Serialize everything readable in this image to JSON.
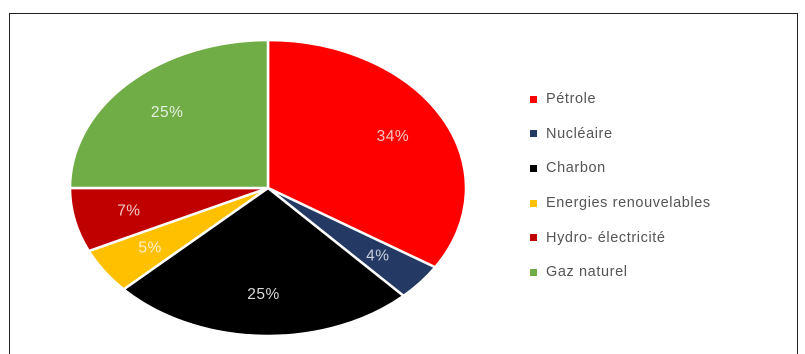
{
  "chart_data": {
    "type": "pie",
    "title": "",
    "slices": [
      {
        "name": "Pétrole",
        "value": 34,
        "label": "34%",
        "color": "#ff0000",
        "label_color": "#f2c4c4"
      },
      {
        "name": "Nucléaire",
        "value": 4,
        "label": "4%",
        "color": "#243a64",
        "label_color": "#c9cfdb"
      },
      {
        "name": "Charbon",
        "value": 25,
        "label": "25%",
        "color": "#000000",
        "label_color": "#d9d9d9"
      },
      {
        "name": "Energies renouvelables",
        "value": 5,
        "label": "5%",
        "color": "#ffc000",
        "label_color": "#fff0c8"
      },
      {
        "name": "Hydro- électricité",
        "value": 7,
        "label": "7%",
        "color": "#c00000",
        "label_color": "#f0c8c8"
      },
      {
        "name": "Gaz naturel",
        "value": 25,
        "label": "25%",
        "color": "#70ad47",
        "label_color": "#e6f0dd"
      }
    ],
    "start_angle_deg": 0,
    "direction": "clockwise",
    "legend_position": "right"
  }
}
